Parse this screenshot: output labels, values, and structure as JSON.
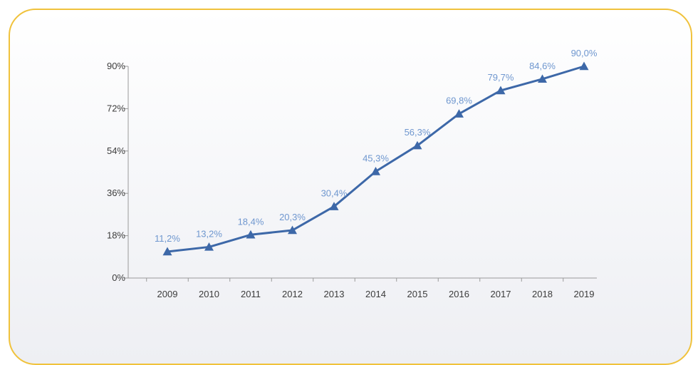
{
  "chart_data": {
    "type": "line",
    "title": "",
    "xlabel": "",
    "ylabel": "",
    "categories": [
      "2009",
      "2010",
      "2011",
      "2012",
      "2013",
      "2014",
      "2015",
      "2016",
      "2017",
      "2018",
      "2019"
    ],
    "series": [
      {
        "values": [
          11.2,
          13.2,
          18.4,
          20.3,
          30.4,
          45.3,
          56.3,
          69.8,
          79.7,
          84.6,
          90.0
        ],
        "labels": [
          "11,2%",
          "13,2%",
          "18,4%",
          "20,3%",
          "30,4%",
          "45,3%",
          "56,3%",
          "69,8%",
          "79,7%",
          "84,6%",
          "90,0%"
        ],
        "color": "#3d68a8",
        "label_color": "#6f97cf",
        "marker": "triangle"
      }
    ],
    "ylim": [
      0,
      90
    ],
    "yticks": [
      0,
      18,
      36,
      54,
      72,
      90
    ],
    "ytick_labels": [
      "0%",
      "18%",
      "36%",
      "54%",
      "72%",
      "90%"
    ],
    "grid": false,
    "legend": "none"
  },
  "colors": {
    "card_border": "#f0c23c",
    "axis": "#9a9a9a"
  }
}
